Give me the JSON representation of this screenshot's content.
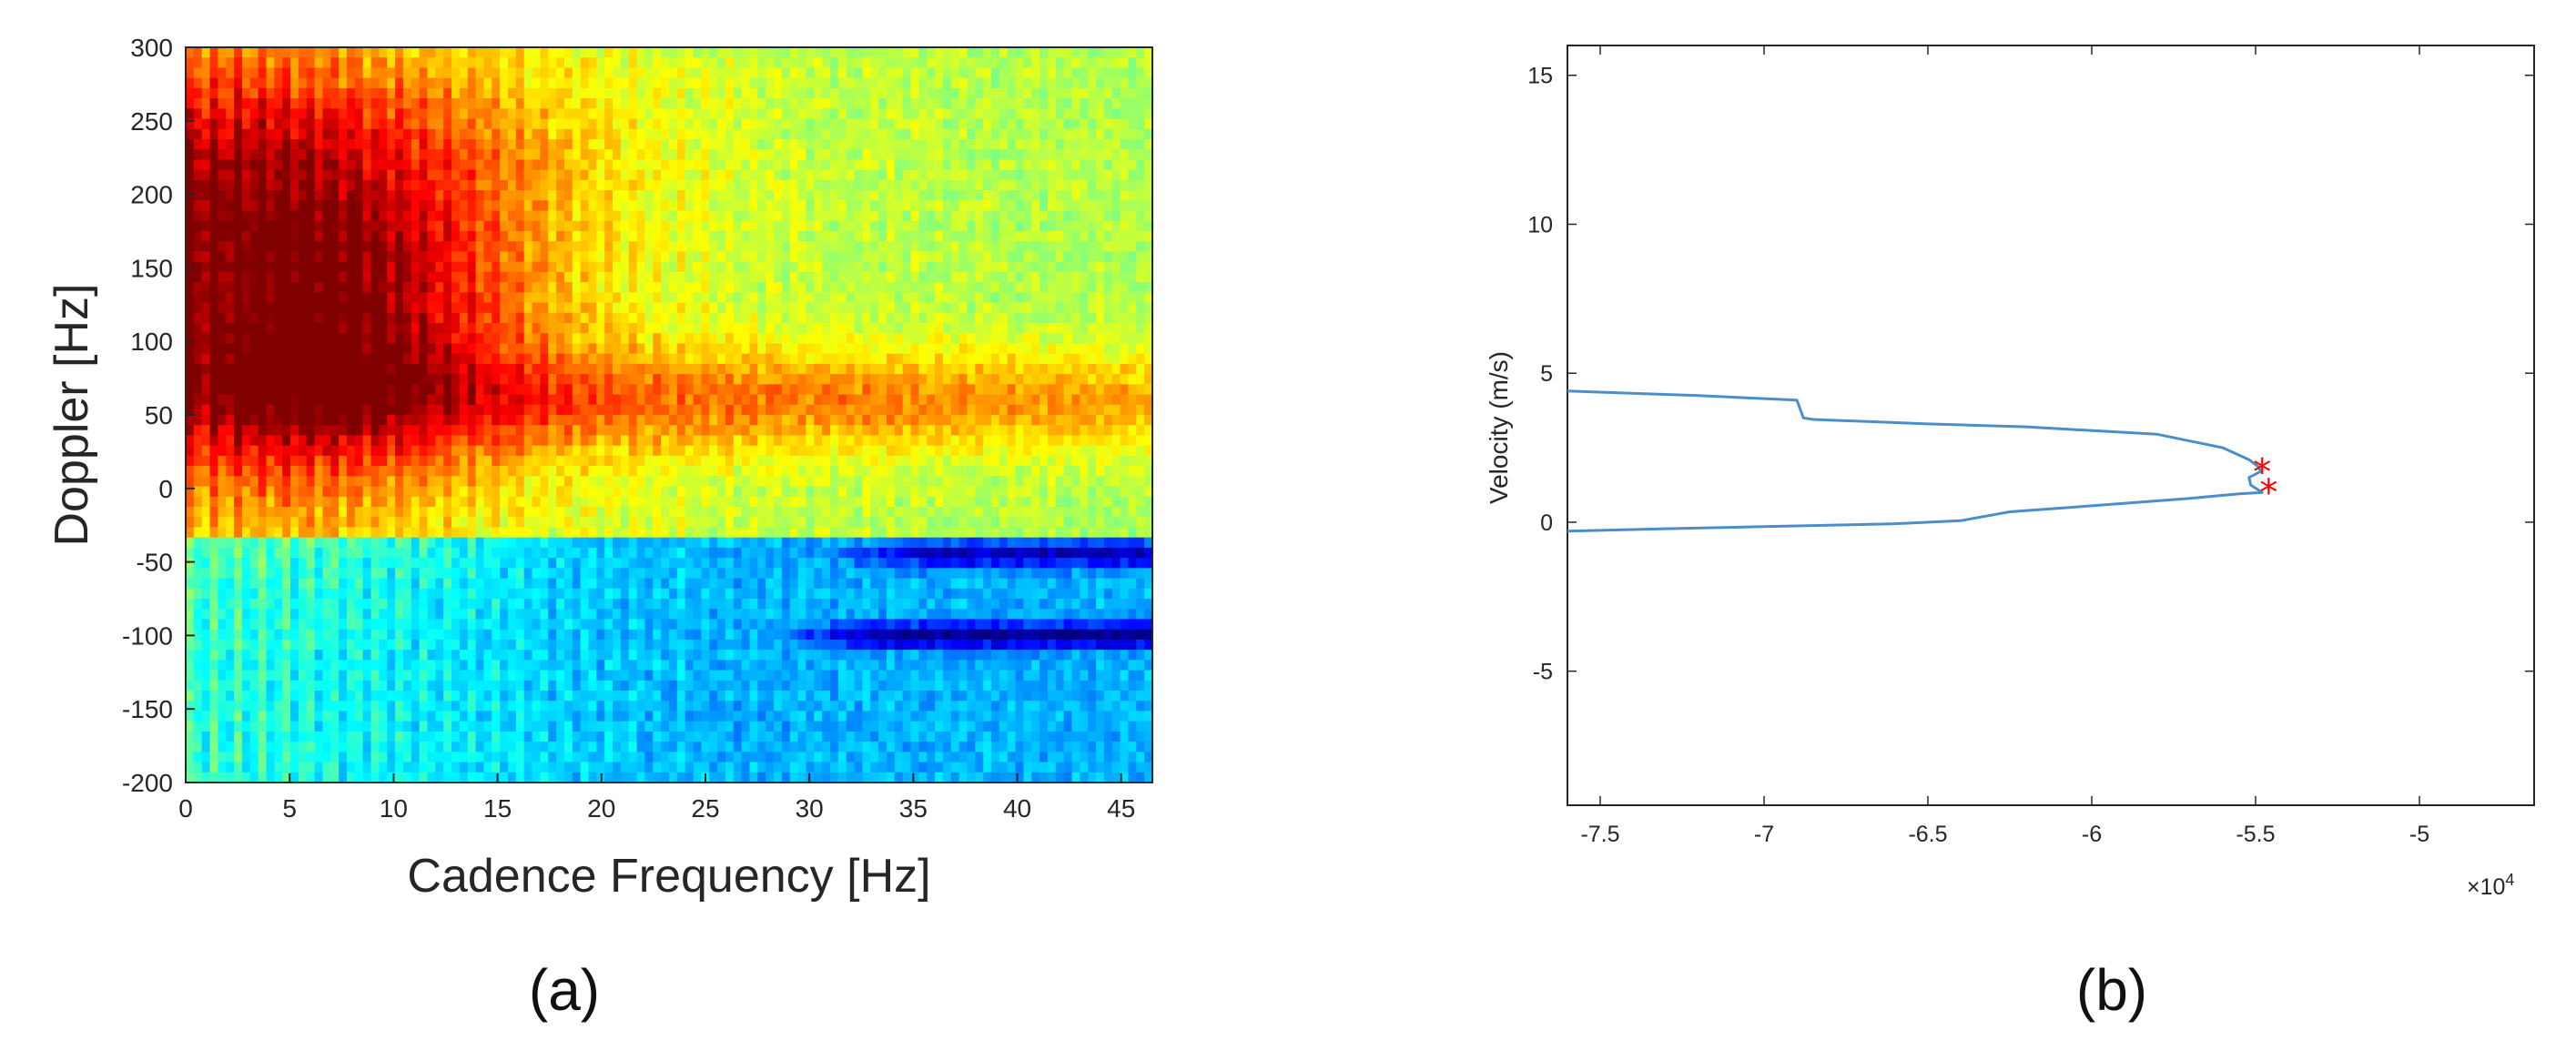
{
  "chart_data": [
    {
      "type": "heatmap",
      "caption": "(a)",
      "xlabel": "Cadence Frequency [Hz]",
      "ylabel": "Doppler [Hz]",
      "xlim": [
        0,
        46.5
      ],
      "ylim": [
        -200,
        300
      ],
      "xticks": [
        0,
        5,
        10,
        15,
        20,
        25,
        30,
        35,
        40,
        45
      ],
      "xtick_labels": [
        "0",
        "5",
        "10",
        "15",
        "20",
        "25",
        "30",
        "35",
        "40",
        "45"
      ],
      "yticks": [
        300,
        250,
        200,
        150,
        100,
        50,
        0,
        -50,
        -100,
        -150,
        -200
      ],
      "ytick_labels": [
        "300",
        "250",
        "200",
        "150",
        "100",
        "50",
        "0",
        "-50",
        "-100",
        "-150",
        "-200"
      ],
      "colormap": "jet",
      "value_range": [
        0,
        1
      ],
      "features": [
        {
          "name": "main-energy",
          "x_center": 6,
          "y_center": 100,
          "x_width": 7,
          "y_width": 70,
          "amplitude": 1.0
        },
        {
          "name": "high-doppler-band",
          "x_center": 3,
          "y_center": 220,
          "x_width": 10,
          "y_width": 60,
          "amplitude": 0.7
        },
        {
          "name": "mid-band",
          "x_center": 30,
          "y_center": 60,
          "x_width": 25,
          "y_width": 25,
          "amplitude": 0.5
        },
        {
          "name": "dark-line-upper",
          "x_start": 30,
          "x_end": 46.5,
          "y": -45,
          "amplitude": -0.7
        },
        {
          "name": "dark-line-lower",
          "x_start": 28,
          "x_end": 46.5,
          "y": -100,
          "amplitude": -0.85
        }
      ]
    },
    {
      "type": "line",
      "caption": "(b)",
      "ylabel": "Velocity (m/s)",
      "xlabel": "",
      "x_multiplier": "×10",
      "x_multiplier_exponent": "4",
      "xlim": [
        -76000,
        -46500
      ],
      "ylim": [
        -9.5,
        16
      ],
      "xticks": [
        -75000,
        -70000,
        -65000,
        -60000,
        -55000,
        -50000
      ],
      "xtick_labels": [
        "-7.5",
        "-7",
        "-6.5",
        "-6",
        "-5.5",
        "-5"
      ],
      "yticks": [
        15,
        10,
        5,
        0,
        -5
      ],
      "ytick_labels": [
        "15",
        "10",
        "5",
        "0",
        "-5"
      ],
      "series": [
        {
          "name": "velocity-trajectory",
          "color": "#4a8fc9",
          "x": [
            -76000,
            -72000,
            -69000,
            -68900,
            -68800,
            -68500,
            -65000,
            -62000,
            -58000,
            -56000,
            -55200,
            -54900,
            -54850,
            -55200,
            -55150,
            -54800,
            -55500,
            -57000,
            -60000,
            -62500,
            -64000,
            -66000,
            -70000,
            -73000,
            -76000
          ],
          "y": [
            4.4,
            4.25,
            4.1,
            3.8,
            3.5,
            3.45,
            3.3,
            3.2,
            2.95,
            2.5,
            2.1,
            1.85,
            1.7,
            1.5,
            1.25,
            1.0,
            0.95,
            0.8,
            0.55,
            0.35,
            0.05,
            -0.05,
            -0.15,
            -0.22,
            -0.3
          ]
        }
      ],
      "markers": [
        {
          "x": -54800,
          "y": 1.7,
          "color": "#ff0000",
          "symbol": "*"
        },
        {
          "x": -54600,
          "y": 1.0,
          "color": "#ff0000",
          "symbol": "*"
        }
      ]
    }
  ]
}
